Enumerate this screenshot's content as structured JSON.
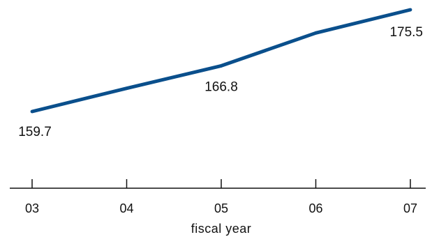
{
  "chart_data": {
    "type": "line",
    "x": [
      "03",
      "04",
      "05",
      "06",
      "07"
    ],
    "xlabel": "fiscal year",
    "ylabel": "",
    "title": "",
    "grid": false,
    "series": [
      {
        "values": [
          159.7,
          163.3,
          166.8,
          171.9,
          175.5
        ],
        "color": "#0a4f8c"
      }
    ],
    "data_labels": [
      {
        "index": 0,
        "text": "159.7",
        "position": "below"
      },
      {
        "index": 2,
        "text": "166.8",
        "position": "below"
      },
      {
        "index": 4,
        "text": "175.5",
        "position": "below"
      }
    ]
  }
}
